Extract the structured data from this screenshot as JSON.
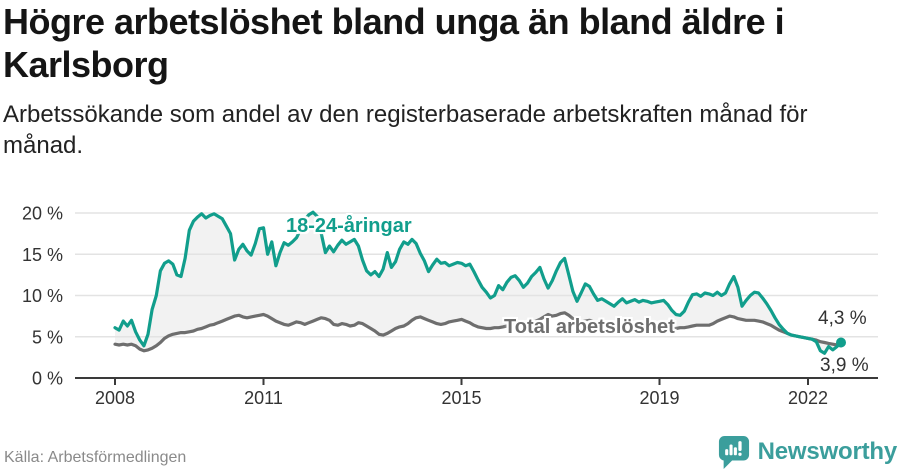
{
  "header": {
    "title": "Högre arbetslöshet bland unga än bland äldre i Karlsborg",
    "subtitle": "Arbetssökande som andel av den registerbaserade arbetskraften månad för månad."
  },
  "source": {
    "label": "Källa: Arbetsförmedlingen"
  },
  "branding": {
    "name": "Newsworthy",
    "logo_icon": "newsworthy-speech-bubble-chart-icon",
    "color": "#3b9e9c"
  },
  "colors": {
    "young_line": "#119e8c",
    "total_line": "#6e6e6e",
    "between_fill": "#f2f2f2",
    "grid": "#e3e3e3",
    "axis": "#3a3a3a",
    "tick_text": "#333333"
  },
  "chart_data": {
    "type": "line",
    "frequency": "monthly",
    "x_start": "2008-01",
    "x_end": "2022-09",
    "unit": "%",
    "ylim": [
      0,
      20
    ],
    "grid": true,
    "legend": "inline-labels",
    "y_tick_values": [
      0,
      5,
      10,
      15,
      20
    ],
    "y_tick_labels": [
      "0 %",
      "5 %",
      "10 %",
      "15 %",
      "20 %"
    ],
    "x_tick_years": [
      2008,
      2011,
      2015,
      2019,
      2022
    ],
    "x_tick_labels": [
      "2008",
      "2011",
      "2015",
      "2019",
      "2022"
    ],
    "annotations": {
      "young_label": "18-24-åringar",
      "total_label": "Total arbetslöshet",
      "young_end_value": "4,3 %",
      "total_end_value": "3,9 %"
    },
    "series": [
      {
        "name": "18-24-åringar",
        "color": "#119e8c",
        "end_marker": true,
        "values": [
          6.1,
          5.8,
          6.9,
          6.3,
          7.0,
          5.6,
          4.6,
          3.9,
          5.3,
          8.3,
          10.0,
          13.0,
          13.9,
          14.2,
          13.8,
          12.5,
          12.3,
          14.5,
          17.9,
          19.0,
          19.5,
          19.9,
          19.4,
          19.7,
          19.9,
          19.6,
          19.3,
          18.4,
          17.5,
          14.3,
          15.6,
          16.2,
          15.4,
          14.9,
          16.3,
          18.1,
          18.2,
          15.0,
          16.5,
          13.6,
          15.2,
          16.4,
          16.1,
          16.5,
          17.0,
          18.0,
          19.2,
          19.8,
          20.1,
          19.6,
          17.5,
          15.2,
          16.0,
          15.3,
          16.1,
          16.7,
          16.2,
          16.5,
          16.8,
          16.0,
          14.3,
          13.0,
          12.5,
          12.9,
          12.3,
          13.2,
          15.2,
          13.4,
          14.1,
          15.6,
          16.5,
          16.2,
          16.8,
          16.3,
          15.1,
          14.2,
          12.9,
          13.7,
          14.4,
          13.9,
          14.0,
          13.6,
          13.8,
          14.0,
          13.9,
          13.6,
          13.8,
          12.9,
          11.9,
          11.0,
          10.4,
          9.7,
          10.0,
          11.2,
          10.7,
          11.6,
          12.2,
          12.4,
          11.8,
          11.0,
          11.5,
          12.3,
          12.8,
          13.4,
          12.0,
          10.9,
          11.8,
          13.0,
          14.0,
          14.5,
          12.5,
          10.5,
          9.3,
          10.3,
          11.4,
          11.1,
          10.2,
          9.4,
          9.6,
          9.3,
          9.0,
          8.7,
          9.2,
          9.6,
          9.1,
          9.3,
          9.5,
          9.2,
          9.4,
          9.3,
          9.1,
          9.2,
          9.3,
          9.4,
          8.9,
          8.2,
          7.7,
          7.6,
          8.1,
          9.2,
          10.1,
          10.2,
          9.9,
          10.3,
          10.2,
          10.0,
          10.4,
          10.0,
          10.3,
          11.4,
          12.3,
          11.0,
          8.7,
          9.4,
          10.0,
          10.4,
          10.3,
          9.7,
          9.0,
          8.2,
          7.3,
          6.5,
          5.9,
          5.4,
          5.2,
          5.1,
          5.0,
          4.9,
          4.8,
          4.7,
          4.4,
          3.3,
          3.0,
          3.8,
          3.4,
          3.8,
          4.3
        ]
      },
      {
        "name": "Total arbetslöshet",
        "color": "#6e6e6e",
        "end_marker": false,
        "values": [
          4.1,
          4.0,
          4.1,
          4.0,
          4.1,
          3.9,
          3.5,
          3.3,
          3.4,
          3.6,
          3.9,
          4.3,
          4.8,
          5.1,
          5.3,
          5.4,
          5.5,
          5.5,
          5.6,
          5.7,
          5.9,
          6.0,
          6.2,
          6.4,
          6.5,
          6.7,
          6.9,
          7.1,
          7.3,
          7.5,
          7.6,
          7.4,
          7.3,
          7.4,
          7.5,
          7.6,
          7.7,
          7.5,
          7.2,
          6.9,
          6.7,
          6.5,
          6.4,
          6.6,
          6.8,
          6.7,
          6.5,
          6.7,
          6.9,
          7.1,
          7.3,
          7.2,
          7.0,
          6.5,
          6.4,
          6.6,
          6.5,
          6.3,
          6.4,
          6.7,
          6.6,
          6.3,
          6.0,
          5.7,
          5.3,
          5.2,
          5.4,
          5.7,
          6.0,
          6.2,
          6.3,
          6.6,
          7.0,
          7.3,
          7.4,
          7.2,
          7.0,
          6.8,
          6.6,
          6.5,
          6.6,
          6.8,
          6.9,
          7.0,
          7.1,
          6.9,
          6.7,
          6.4,
          6.2,
          6.1,
          6.0,
          6.0,
          6.1,
          6.1,
          6.2,
          6.3,
          6.4,
          6.5,
          6.5,
          6.6,
          6.6,
          6.7,
          6.9,
          7.1,
          7.4,
          7.7,
          7.5,
          7.6,
          7.8,
          7.9,
          7.6,
          7.2,
          6.9,
          6.8,
          6.9,
          7.0,
          6.8,
          6.6,
          6.5,
          6.4,
          6.4,
          6.3,
          6.2,
          6.1,
          6.2,
          6.1,
          6.0,
          6.1,
          6.0,
          5.9,
          5.9,
          6.0,
          5.9,
          5.8,
          5.8,
          5.9,
          6.0,
          6.1,
          6.1,
          6.2,
          6.3,
          6.4,
          6.4,
          6.4,
          6.4,
          6.6,
          6.9,
          7.1,
          7.3,
          7.5,
          7.4,
          7.2,
          7.1,
          7.0,
          7.0,
          7.0,
          6.9,
          6.8,
          6.6,
          6.4,
          6.1,
          5.8,
          5.6,
          5.4,
          5.2,
          5.1,
          5.0,
          4.9,
          4.8,
          4.7,
          4.6,
          4.4,
          4.3,
          4.2,
          4.1,
          4.0,
          3.9
        ]
      }
    ],
    "end_labels": [
      {
        "series": "18-24-åringar",
        "label": "4,3 %"
      },
      {
        "series": "Total arbetslöshet",
        "label": "3,9 %"
      }
    ]
  }
}
